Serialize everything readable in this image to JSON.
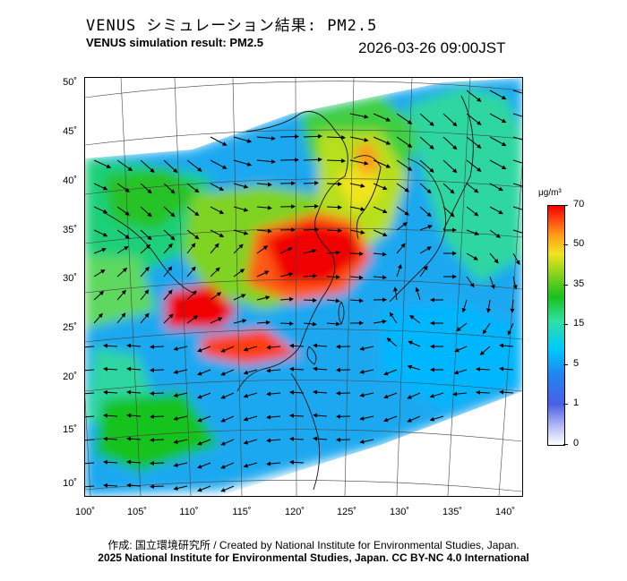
{
  "header": {
    "title_jp": "VENUS シミュレーション結果: PM2.5",
    "title_en": "VENUS simulation result: PM2.5",
    "timestamp": "2026-03-26 09:00JST"
  },
  "map": {
    "y_ticks": [
      "50˚",
      "45˚",
      "40˚",
      "35˚",
      "30˚",
      "25˚",
      "20˚",
      "15˚",
      "10˚"
    ],
    "x_ticks": [
      "100˚",
      "105˚",
      "110˚",
      "115˚",
      "120˚",
      "125˚",
      "130˚",
      "135˚",
      "140˚"
    ],
    "variable": "PM2.5 concentration with wind vectors",
    "lon_range": [
      100,
      142
    ],
    "lat_range": [
      9,
      51
    ]
  },
  "colorbar": {
    "unit": "μg/m³",
    "ticks": [
      "70",
      "50",
      "35",
      "15",
      "5",
      "1",
      "0"
    ],
    "colors": [
      "#ffffff",
      "#4a5fe6",
      "#00c8ff",
      "#17c21b",
      "#f2e41f",
      "#ff3d10",
      "#f00000"
    ]
  },
  "footer": {
    "credit_jp": "作成: 国立環境研究所 / Created by National Institute for Environmental Studies, Japan.",
    "credit_en": "2025 National Institute for Environmental Studies, Japan. CC BY-NC 4.0 International"
  }
}
